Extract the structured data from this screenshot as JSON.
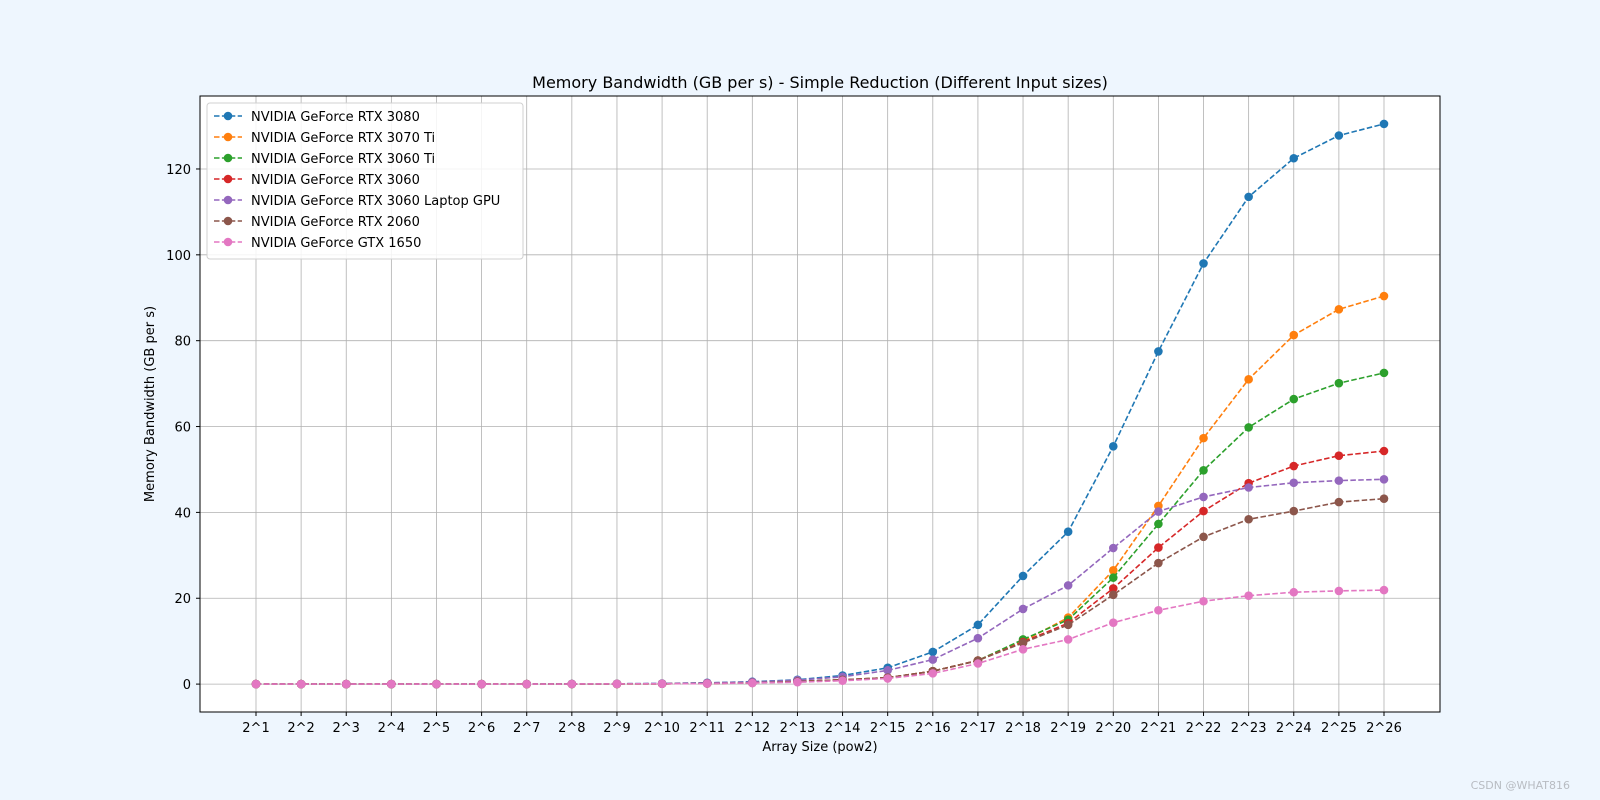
{
  "watermark": "CSDN @WHAT816",
  "chart_data": {
    "type": "line",
    "title": "Memory Bandwidth (GB per s) - Simple Reduction (Different Input sizes)",
    "xlabel": "Array Size (pow2)",
    "ylabel": "Memory Bandwidth (GB per s)",
    "categories": [
      "2^1",
      "2^2",
      "2^3",
      "2^4",
      "2^5",
      "2^6",
      "2^7",
      "2^8",
      "2^9",
      "2^10",
      "2^11",
      "2^12",
      "2^13",
      "2^14",
      "2^15",
      "2^16",
      "2^17",
      "2^18",
      "2^19",
      "2^20",
      "2^21",
      "2^22",
      "2^23",
      "2^24",
      "2^25",
      "2^26"
    ],
    "yticks": [
      0,
      20,
      40,
      60,
      80,
      100,
      120
    ],
    "ylim": [
      -6.5,
      137
    ],
    "grid": true,
    "legend_position": "top-left",
    "series": [
      {
        "name": "NVIDIA GeForce RTX 3080",
        "color": "#1f77b4",
        "values": [
          0.0,
          0.0,
          0.0,
          0.0,
          0.01,
          0.01,
          0.02,
          0.04,
          0.07,
          0.14,
          0.3,
          0.55,
          1.0,
          2.0,
          3.8,
          7.5,
          13.8,
          25.2,
          35.5,
          55.4,
          77.5,
          98.0,
          113.5,
          122.5,
          127.8,
          130.5
        ]
      },
      {
        "name": "NVIDIA GeForce RTX 3070 Ti",
        "color": "#ff7f0e",
        "values": [
          0.0,
          0.0,
          0.0,
          0.0,
          0.0,
          0.01,
          0.01,
          0.02,
          0.04,
          0.08,
          0.15,
          0.3,
          0.6,
          1.0,
          1.5,
          3.0,
          5.5,
          10.0,
          15.5,
          26.5,
          41.5,
          57.3,
          71.0,
          81.3,
          87.3,
          90.4
        ]
      },
      {
        "name": "NVIDIA GeForce RTX 3060 Ti",
        "color": "#2ca02c",
        "values": [
          0.0,
          0.0,
          0.0,
          0.0,
          0.0,
          0.01,
          0.01,
          0.02,
          0.04,
          0.08,
          0.15,
          0.3,
          0.6,
          1.0,
          1.5,
          3.0,
          5.5,
          10.4,
          15.0,
          24.8,
          37.3,
          49.8,
          59.8,
          66.4,
          70.1,
          72.5
        ]
      },
      {
        "name": "NVIDIA GeForce RTX 3060",
        "color": "#d62728",
        "values": [
          0.0,
          0.0,
          0.0,
          0.0,
          0.0,
          0.01,
          0.01,
          0.02,
          0.04,
          0.08,
          0.15,
          0.3,
          0.6,
          1.0,
          1.5,
          3.0,
          5.5,
          9.8,
          14.2,
          22.3,
          31.8,
          40.3,
          46.8,
          50.8,
          53.2,
          54.3
        ]
      },
      {
        "name": "NVIDIA GeForce RTX 3060 Laptop GPU",
        "color": "#9467bd",
        "values": [
          0.0,
          0.0,
          0.0,
          0.0,
          0.01,
          0.01,
          0.02,
          0.04,
          0.07,
          0.14,
          0.28,
          0.5,
          0.9,
          1.7,
          3.2,
          5.7,
          10.7,
          17.5,
          23.0,
          31.7,
          40.2,
          43.6,
          45.8,
          46.9,
          47.4,
          47.7
        ]
      },
      {
        "name": "NVIDIA GeForce RTX 2060",
        "color": "#8c564b",
        "values": [
          0.0,
          0.0,
          0.0,
          0.0,
          0.0,
          0.01,
          0.01,
          0.02,
          0.04,
          0.08,
          0.15,
          0.3,
          0.6,
          1.0,
          1.5,
          3.0,
          5.5,
          9.6,
          13.8,
          20.8,
          28.2,
          34.3,
          38.4,
          40.3,
          42.4,
          43.2
        ]
      },
      {
        "name": "NVIDIA GeForce GTX 1650",
        "color": "#e377c2",
        "values": [
          0.0,
          0.0,
          0.0,
          0.0,
          0.0,
          0.01,
          0.01,
          0.02,
          0.04,
          0.07,
          0.12,
          0.25,
          0.45,
          0.8,
          1.3,
          2.5,
          4.8,
          8.1,
          10.4,
          14.3,
          17.2,
          19.3,
          20.6,
          21.4,
          21.7,
          21.9
        ]
      }
    ]
  }
}
